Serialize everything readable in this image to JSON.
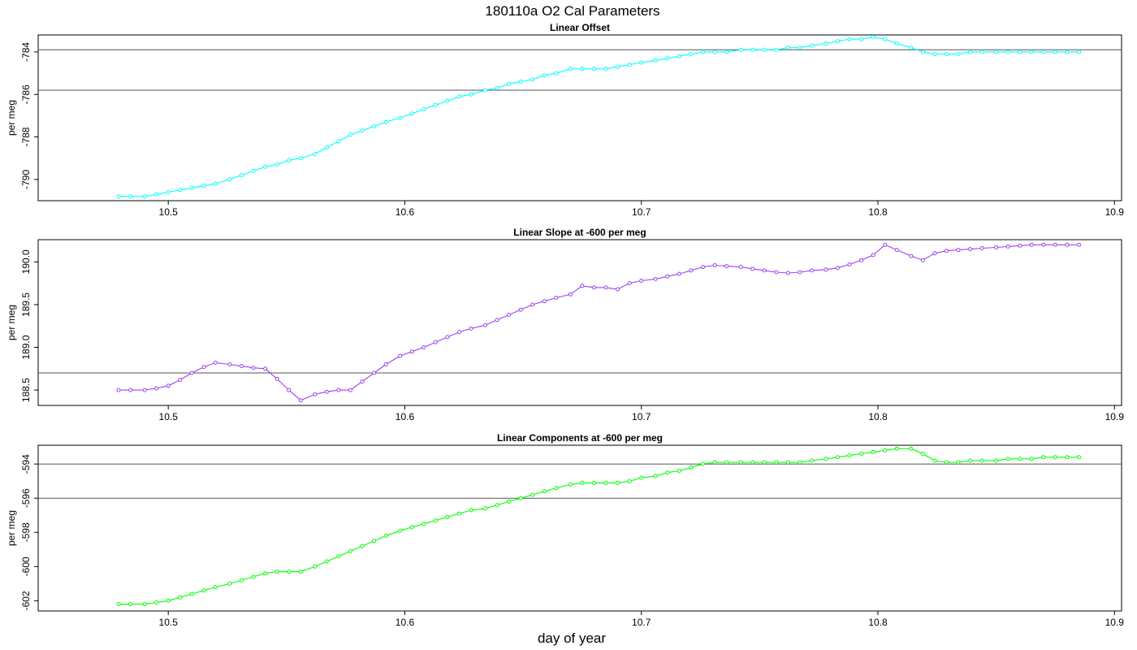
{
  "figure": {
    "title": "180110a   O2 Cal Parameters",
    "xlabel": "day of year"
  },
  "chart_data": [
    {
      "type": "line",
      "title": "Linear Offset",
      "ylabel": "per meg",
      "color": "#00ffff",
      "xlim": [
        10.445,
        10.903
      ],
      "ylim": [
        -791.0,
        -783.2
      ],
      "xticks": [
        "10.5",
        "10.6",
        "10.7",
        "10.8",
        "10.9"
      ],
      "yticks": [
        "-784",
        "-786",
        "-788",
        "-790"
      ],
      "hlines": [
        -783.9,
        -785.8
      ],
      "x": [
        10.479,
        10.484,
        10.49,
        10.495,
        10.5,
        10.505,
        10.51,
        10.515,
        10.52,
        10.526,
        10.531,
        10.536,
        10.541,
        10.546,
        10.551,
        10.556,
        10.562,
        10.567,
        10.572,
        10.577,
        10.582,
        10.587,
        10.592,
        10.598,
        10.603,
        10.608,
        10.613,
        10.618,
        10.623,
        10.628,
        10.634,
        10.639,
        10.644,
        10.649,
        10.654,
        10.659,
        10.664,
        10.67,
        10.675,
        10.68,
        10.685,
        10.69,
        10.695,
        10.7,
        10.706,
        10.711,
        10.716,
        10.721,
        10.726,
        10.731,
        10.736,
        10.742,
        10.747,
        10.752,
        10.757,
        10.762,
        10.767,
        10.772,
        10.778,
        10.783,
        10.788,
        10.793,
        10.798,
        10.803,
        10.808,
        10.814,
        10.819,
        10.824,
        10.829,
        10.834,
        10.839,
        10.844,
        10.85,
        10.855,
        10.86,
        10.865,
        10.87,
        10.875,
        10.88,
        10.885
      ],
      "y": [
        -790.8,
        -790.8,
        -790.8,
        -790.7,
        -790.6,
        -790.5,
        -790.4,
        -790.3,
        -790.2,
        -790.0,
        -789.8,
        -789.6,
        -789.4,
        -789.3,
        -789.1,
        -789.0,
        -788.8,
        -788.5,
        -788.2,
        -787.9,
        -787.7,
        -787.5,
        -787.3,
        -787.1,
        -786.9,
        -786.7,
        -786.5,
        -786.3,
        -786.1,
        -786.0,
        -785.8,
        -785.7,
        -785.5,
        -785.4,
        -785.3,
        -785.1,
        -785.0,
        -784.8,
        -784.8,
        -784.8,
        -784.8,
        -784.7,
        -784.6,
        -784.5,
        -784.4,
        -784.3,
        -784.2,
        -784.1,
        -784.0,
        -784.0,
        -784.0,
        -783.9,
        -783.9,
        -783.9,
        -783.9,
        -783.8,
        -783.8,
        -783.7,
        -783.6,
        -783.5,
        -783.4,
        -783.4,
        -783.3,
        -783.4,
        -783.6,
        -783.8,
        -784.0,
        -784.1,
        -784.1,
        -784.1,
        -784.0,
        -784.0,
        -784.0,
        -784.0,
        -784.0,
        -784.0,
        -784.0,
        -784.0,
        -784.0,
        -784.0
      ]
    },
    {
      "type": "line",
      "title": "Linear Slope at -600 per meg",
      "ylabel": "per meg",
      "color": "#a040f0",
      "xlim": [
        10.445,
        10.903
      ],
      "ylim": [
        188.32,
        190.26
      ],
      "xticks": [
        "10.5",
        "10.6",
        "10.7",
        "10.8",
        "10.9"
      ],
      "yticks": [
        "188.5",
        "189.0",
        "189.5",
        "190.0"
      ],
      "hlines": [
        188.7
      ],
      "x": [
        10.479,
        10.484,
        10.49,
        10.495,
        10.5,
        10.505,
        10.51,
        10.515,
        10.52,
        10.526,
        10.531,
        10.536,
        10.541,
        10.546,
        10.551,
        10.556,
        10.562,
        10.567,
        10.572,
        10.577,
        10.582,
        10.587,
        10.592,
        10.598,
        10.603,
        10.608,
        10.613,
        10.618,
        10.623,
        10.628,
        10.634,
        10.639,
        10.644,
        10.649,
        10.654,
        10.659,
        10.664,
        10.67,
        10.675,
        10.68,
        10.685,
        10.69,
        10.695,
        10.7,
        10.706,
        10.711,
        10.716,
        10.721,
        10.726,
        10.731,
        10.736,
        10.742,
        10.747,
        10.752,
        10.757,
        10.762,
        10.767,
        10.772,
        10.778,
        10.783,
        10.788,
        10.793,
        10.798,
        10.803,
        10.808,
        10.814,
        10.819,
        10.824,
        10.829,
        10.834,
        10.839,
        10.844,
        10.85,
        10.855,
        10.86,
        10.865,
        10.87,
        10.875,
        10.88,
        10.885
      ],
      "y": [
        188.5,
        188.5,
        188.5,
        188.52,
        188.55,
        188.62,
        188.7,
        188.77,
        188.82,
        188.8,
        188.78,
        188.76,
        188.75,
        188.63,
        188.5,
        188.38,
        188.45,
        188.48,
        188.5,
        188.5,
        188.6,
        188.7,
        188.8,
        188.9,
        188.95,
        189.0,
        189.06,
        189.12,
        189.18,
        189.22,
        189.26,
        189.32,
        189.38,
        189.44,
        189.5,
        189.54,
        189.58,
        189.62,
        189.72,
        189.7,
        189.7,
        189.68,
        189.75,
        189.78,
        189.8,
        189.83,
        189.86,
        189.9,
        189.94,
        189.96,
        189.95,
        189.94,
        189.92,
        189.9,
        189.88,
        189.87,
        189.88,
        189.9,
        189.91,
        189.93,
        189.97,
        190.02,
        190.08,
        190.2,
        190.14,
        190.07,
        190.02,
        190.1,
        190.13,
        190.14,
        190.15,
        190.16,
        190.17,
        190.18,
        190.19,
        190.2,
        190.2,
        190.2,
        190.2,
        190.2
      ]
    },
    {
      "type": "line",
      "title": "Linear Components at -600 per meg",
      "ylabel": "per meg",
      "color": "#00ff00",
      "xlim": [
        10.445,
        10.903
      ],
      "ylim": [
        -602.6,
        -592.9
      ],
      "xticks": [
        "10.5",
        "10.6",
        "10.7",
        "10.8",
        "10.9"
      ],
      "yticks": [
        "-594",
        "-596",
        "-598",
        "-600",
        "-602"
      ],
      "hlines": [
        -594.0,
        -596.0
      ],
      "x": [
        10.479,
        10.484,
        10.49,
        10.495,
        10.5,
        10.505,
        10.51,
        10.515,
        10.52,
        10.526,
        10.531,
        10.536,
        10.541,
        10.546,
        10.551,
        10.556,
        10.562,
        10.567,
        10.572,
        10.577,
        10.582,
        10.587,
        10.592,
        10.598,
        10.603,
        10.608,
        10.613,
        10.618,
        10.623,
        10.628,
        10.634,
        10.639,
        10.644,
        10.649,
        10.654,
        10.659,
        10.664,
        10.67,
        10.675,
        10.68,
        10.685,
        10.69,
        10.695,
        10.7,
        10.706,
        10.711,
        10.716,
        10.721,
        10.726,
        10.731,
        10.736,
        10.742,
        10.747,
        10.752,
        10.757,
        10.762,
        10.767,
        10.772,
        10.778,
        10.783,
        10.788,
        10.793,
        10.798,
        10.803,
        10.808,
        10.814,
        10.819,
        10.824,
        10.829,
        10.834,
        10.839,
        10.844,
        10.85,
        10.855,
        10.86,
        10.865,
        10.87,
        10.875,
        10.88,
        10.885
      ],
      "y": [
        -602.2,
        -602.2,
        -602.2,
        -602.1,
        -602.0,
        -601.8,
        -601.6,
        -601.4,
        -601.2,
        -601.0,
        -600.8,
        -600.6,
        -600.4,
        -600.3,
        -600.3,
        -600.3,
        -600.0,
        -599.7,
        -599.4,
        -599.1,
        -598.8,
        -598.5,
        -598.2,
        -597.9,
        -597.7,
        -597.5,
        -597.3,
        -597.1,
        -596.9,
        -596.7,
        -596.6,
        -596.4,
        -596.2,
        -596.0,
        -595.8,
        -595.6,
        -595.4,
        -595.2,
        -595.1,
        -595.1,
        -595.1,
        -595.1,
        -595.0,
        -594.8,
        -594.7,
        -594.5,
        -594.4,
        -594.2,
        -594.0,
        -593.9,
        -593.9,
        -593.9,
        -593.9,
        -593.9,
        -593.9,
        -593.9,
        -593.9,
        -593.8,
        -593.7,
        -593.6,
        -593.5,
        -593.4,
        -593.3,
        -593.2,
        -593.1,
        -593.1,
        -593.4,
        -593.8,
        -593.9,
        -593.9,
        -593.8,
        -593.8,
        -593.8,
        -593.7,
        -593.7,
        -593.7,
        -593.6,
        -593.6,
        -593.6,
        -593.6
      ]
    }
  ]
}
